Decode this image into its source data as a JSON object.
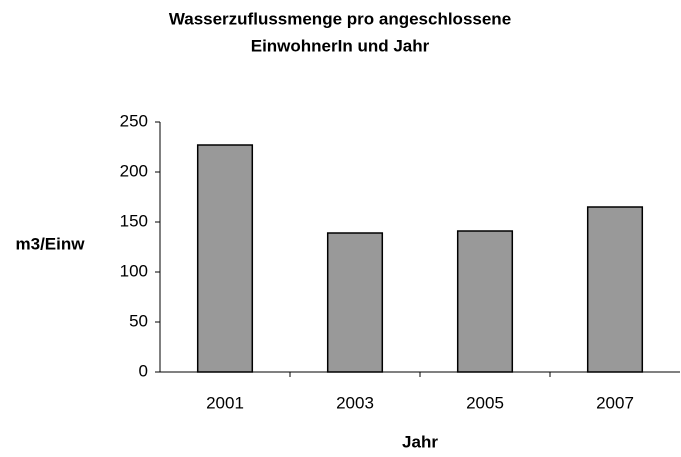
{
  "chart_data": {
    "type": "bar",
    "title": [
      "Wasserzuflussmenge pro angeschlossene",
      "EinwohnerIn und Jahr"
    ],
    "x_label": "Jahr",
    "y_label": "m3/Einw",
    "categories": [
      "2001",
      "2003",
      "2005",
      "2007"
    ],
    "values": [
      227,
      139,
      141,
      165
    ],
    "color": "#999999",
    "ylim": [
      0,
      250
    ],
    "yticks": [
      0,
      50,
      100,
      150,
      200,
      250
    ],
    "grid": false
  }
}
